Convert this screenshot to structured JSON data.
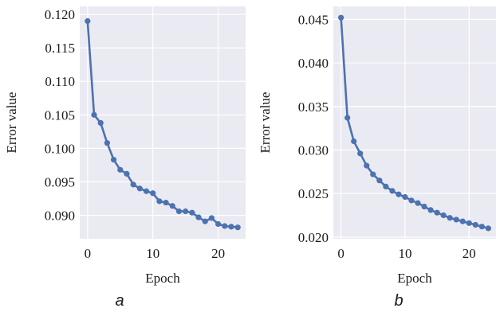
{
  "chart_data": [
    {
      "type": "line",
      "panel_label": "a",
      "xlabel": "Epoch",
      "ylabel": "Error value",
      "xlim": [
        -1.2,
        24.2
      ],
      "ylim": [
        0.0865,
        0.1212
      ],
      "xticks": [
        0,
        10,
        20
      ],
      "yticks": [
        0.09,
        0.095,
        0.1,
        0.105,
        0.11,
        0.115,
        0.12
      ],
      "ytick_labels": [
        "0.090",
        "0.095",
        "0.100",
        "0.105",
        "0.110",
        "0.115",
        "0.120"
      ],
      "grid": true,
      "series": [
        {
          "x": [
            0,
            1,
            2,
            3,
            4,
            5,
            6,
            7,
            8,
            9,
            10,
            11,
            12,
            13,
            14,
            15,
            16,
            17,
            18,
            19,
            20,
            21,
            22,
            23
          ],
          "y": [
            0.119,
            0.105,
            0.1038,
            0.1008,
            0.0983,
            0.0968,
            0.0962,
            0.0946,
            0.094,
            0.0936,
            0.0933,
            0.0921,
            0.0919,
            0.0914,
            0.0906,
            0.0906,
            0.0904,
            0.0897,
            0.0891,
            0.0896,
            0.0887,
            0.0884,
            0.0883,
            0.0882
          ]
        }
      ]
    },
    {
      "type": "line",
      "panel_label": "b",
      "xlabel": "Epoch",
      "ylabel": "Error value",
      "xlim": [
        -1.2,
        24.2
      ],
      "ylim": [
        0.0198,
        0.0465
      ],
      "xticks": [
        0,
        10,
        20
      ],
      "yticks": [
        0.02,
        0.025,
        0.03,
        0.035,
        0.04,
        0.045
      ],
      "ytick_labels": [
        "0.020",
        "0.025",
        "0.030",
        "0.035",
        "0.040",
        "0.045"
      ],
      "grid": true,
      "series": [
        {
          "x": [
            0,
            1,
            2,
            3,
            4,
            5,
            6,
            7,
            8,
            9,
            10,
            11,
            12,
            13,
            14,
            15,
            16,
            17,
            18,
            19,
            20,
            21,
            22,
            23
          ],
          "y": [
            0.0452,
            0.0337,
            0.031,
            0.0296,
            0.0282,
            0.0272,
            0.0265,
            0.0258,
            0.0253,
            0.0249,
            0.0246,
            0.0242,
            0.0239,
            0.0235,
            0.0231,
            0.0228,
            0.0225,
            0.0222,
            0.022,
            0.0218,
            0.0216,
            0.0214,
            0.0212,
            0.021
          ]
        }
      ]
    }
  ],
  "colors": {
    "plot_bg": "#eaeaf2",
    "grid": "#ffffff",
    "line": "#4c72b0"
  }
}
